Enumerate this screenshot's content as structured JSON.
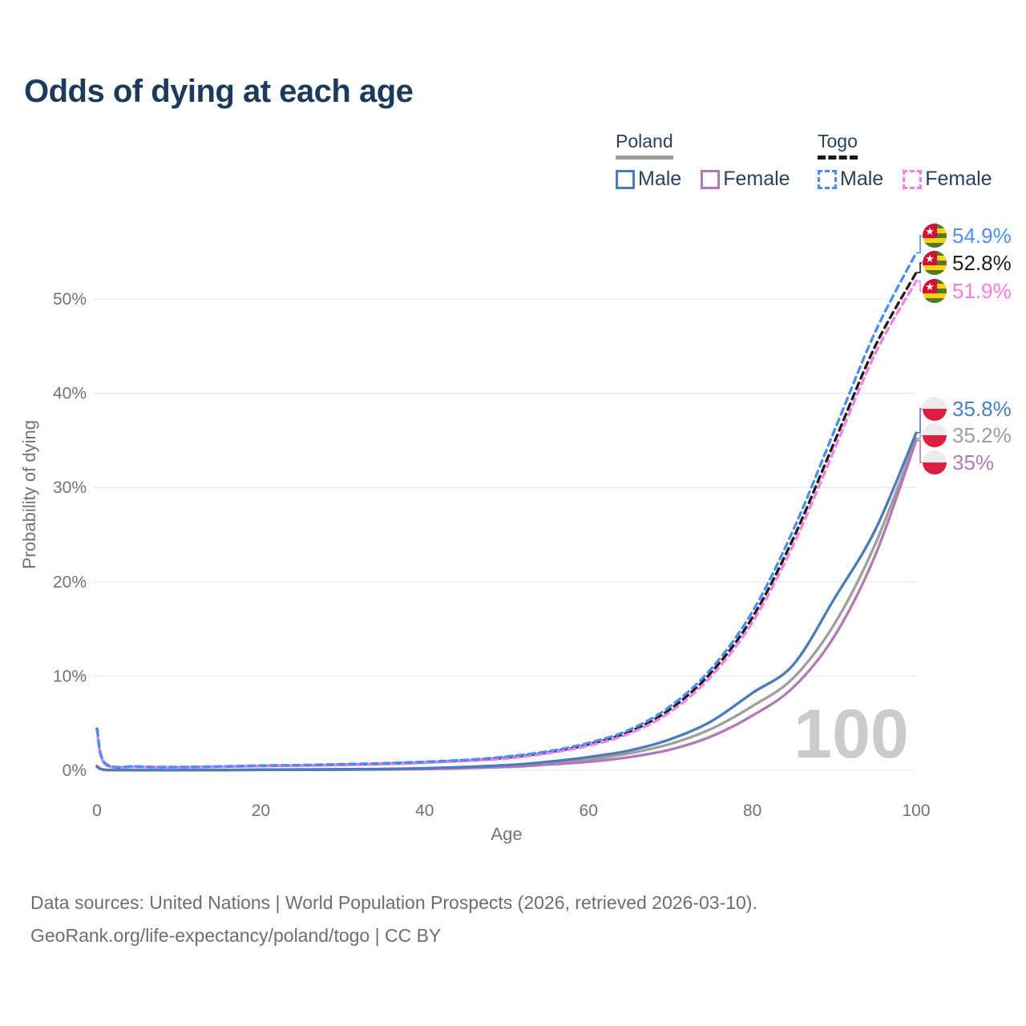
{
  "title": "Odds of dying at each age",
  "legend": {
    "groups": [
      {
        "label": "Poland",
        "underline_style": "solid",
        "underline_color": "#9e9e9e",
        "items": [
          {
            "label": "Male",
            "color": "#4a7bbd",
            "dashed": false
          },
          {
            "label": "Female",
            "color": "#b279b6",
            "dashed": false
          }
        ]
      },
      {
        "label": "Togo",
        "underline_style": "dashed",
        "underline_color": "#1a1a1a",
        "items": [
          {
            "label": "Male",
            "color": "#4a8ef5",
            "dashed": true
          },
          {
            "label": "Female",
            "color": "#fb7de9",
            "dashed": true
          }
        ]
      }
    ]
  },
  "chart_data": {
    "type": "line",
    "title": "Odds of dying at each age",
    "xlabel": "Age",
    "ylabel": "Probability of dying",
    "x_ticks": [
      0,
      20,
      40,
      60,
      80,
      100
    ],
    "y_ticks_percent": [
      0,
      10,
      20,
      30,
      40,
      50
    ],
    "xlim": [
      0,
      100
    ],
    "ylim_percent": [
      0,
      57
    ],
    "grid": "horizontal",
    "gridline_color": "#e9e9e9",
    "tick_color": "#737373",
    "watermark": "100",
    "watermark_color": "#cbcbcb",
    "series": [
      {
        "id": "poland-combined",
        "name": "Poland (both sexes)",
        "color": "#9e9e9e",
        "dashed": false,
        "end_label": {
          "text": "35.2%",
          "color": "#9e9e9e",
          "flag": "poland"
        },
        "points": [
          [
            0,
            0.4
          ],
          [
            1,
            0.045
          ],
          [
            5,
            0.013
          ],
          [
            10,
            0.011
          ],
          [
            15,
            0.025
          ],
          [
            20,
            0.055
          ],
          [
            30,
            0.09
          ],
          [
            40,
            0.18
          ],
          [
            50,
            0.45
          ],
          [
            55,
            0.75
          ],
          [
            60,
            1.15
          ],
          [
            65,
            1.8
          ],
          [
            70,
            2.8
          ],
          [
            75,
            4.4
          ],
          [
            80,
            6.8
          ],
          [
            85,
            9.8
          ],
          [
            90,
            15.5
          ],
          [
            95,
            24.0
          ],
          [
            100,
            35.2
          ]
        ]
      },
      {
        "id": "poland-female",
        "name": "Poland Female",
        "color": "#b279b6",
        "dashed": false,
        "end_label": {
          "text": "35%",
          "color": "#b279b6",
          "flag": "poland"
        },
        "points": [
          [
            0,
            0.38
          ],
          [
            1,
            0.04
          ],
          [
            5,
            0.012
          ],
          [
            10,
            0.01
          ],
          [
            15,
            0.02
          ],
          [
            20,
            0.04
          ],
          [
            30,
            0.06
          ],
          [
            40,
            0.13
          ],
          [
            50,
            0.35
          ],
          [
            55,
            0.6
          ],
          [
            60,
            0.9
          ],
          [
            65,
            1.4
          ],
          [
            70,
            2.2
          ],
          [
            75,
            3.6
          ],
          [
            80,
            5.8
          ],
          [
            85,
            8.8
          ],
          [
            90,
            14.2
          ],
          [
            95,
            22.8
          ],
          [
            100,
            35.0
          ]
        ]
      },
      {
        "id": "poland-male",
        "name": "Poland Male",
        "color": "#4a7bbd",
        "dashed": false,
        "end_label": {
          "text": "35.8%",
          "color": "#4a7ec9",
          "flag": "poland"
        },
        "points": [
          [
            0,
            0.45
          ],
          [
            1,
            0.05
          ],
          [
            5,
            0.015
          ],
          [
            10,
            0.012
          ],
          [
            15,
            0.03
          ],
          [
            20,
            0.07
          ],
          [
            30,
            0.11
          ],
          [
            40,
            0.22
          ],
          [
            50,
            0.55
          ],
          [
            55,
            0.9
          ],
          [
            60,
            1.4
          ],
          [
            65,
            2.1
          ],
          [
            70,
            3.3
          ],
          [
            75,
            5.2
          ],
          [
            80,
            8.2
          ],
          [
            85,
            11.2
          ],
          [
            90,
            18.2
          ],
          [
            95,
            25.5
          ],
          [
            100,
            35.8
          ]
        ]
      },
      {
        "id": "togo-combined",
        "name": "Togo (both sexes)",
        "color": "#1d1d1d",
        "dashed": true,
        "end_label": {
          "text": "52.8%",
          "color": "#1d1d1d",
          "flag": "togo"
        },
        "points": [
          [
            0,
            4.4
          ],
          [
            1,
            0.7
          ],
          [
            5,
            0.38
          ],
          [
            10,
            0.33
          ],
          [
            15,
            0.38
          ],
          [
            20,
            0.47
          ],
          [
            25,
            0.52
          ],
          [
            30,
            0.6
          ],
          [
            35,
            0.7
          ],
          [
            40,
            0.85
          ],
          [
            45,
            1.05
          ],
          [
            50,
            1.35
          ],
          [
            55,
            1.9
          ],
          [
            60,
            2.75
          ],
          [
            65,
            4.1
          ],
          [
            70,
            6.5
          ],
          [
            75,
            10.4
          ],
          [
            80,
            16.2
          ],
          [
            85,
            24.6
          ],
          [
            90,
            34.8
          ],
          [
            95,
            45.0
          ],
          [
            100,
            52.8
          ]
        ]
      },
      {
        "id": "togo-female",
        "name": "Togo Female",
        "color": "#fb7de9",
        "dashed": true,
        "end_label": {
          "text": "51.9%",
          "color": "#fb7ce0",
          "flag": "togo"
        },
        "points": [
          [
            0,
            4.2
          ],
          [
            1,
            0.65
          ],
          [
            5,
            0.36
          ],
          [
            10,
            0.31
          ],
          [
            15,
            0.36
          ],
          [
            20,
            0.44
          ],
          [
            25,
            0.49
          ],
          [
            30,
            0.56
          ],
          [
            35,
            0.65
          ],
          [
            40,
            0.8
          ],
          [
            45,
            1.0
          ],
          [
            50,
            1.25
          ],
          [
            55,
            1.8
          ],
          [
            60,
            2.6
          ],
          [
            65,
            3.9
          ],
          [
            70,
            6.2
          ],
          [
            75,
            10.0
          ],
          [
            80,
            15.7
          ],
          [
            85,
            23.9
          ],
          [
            90,
            34.0
          ],
          [
            95,
            44.2
          ],
          [
            100,
            51.9
          ]
        ]
      },
      {
        "id": "togo-male",
        "name": "Togo Male",
        "color": "#4a8ef5",
        "dashed": true,
        "end_label": {
          "text": "54.9%",
          "color": "#4a90f5",
          "flag": "togo"
        },
        "points": [
          [
            0,
            4.6
          ],
          [
            1,
            0.75
          ],
          [
            5,
            0.4
          ],
          [
            10,
            0.35
          ],
          [
            15,
            0.4
          ],
          [
            20,
            0.5
          ],
          [
            25,
            0.55
          ],
          [
            30,
            0.65
          ],
          [
            35,
            0.75
          ],
          [
            40,
            0.9
          ],
          [
            45,
            1.1
          ],
          [
            50,
            1.45
          ],
          [
            55,
            2.0
          ],
          [
            60,
            2.9
          ],
          [
            65,
            4.3
          ],
          [
            70,
            6.8
          ],
          [
            75,
            10.8
          ],
          [
            80,
            16.8
          ],
          [
            85,
            25.5
          ],
          [
            90,
            36.0
          ],
          [
            95,
            46.5
          ],
          [
            100,
            54.9
          ]
        ]
      }
    ],
    "flag_colors": {
      "poland_white": "#ebebeb",
      "poland_red": "#dc1f3e",
      "togo_green": "#4e7b24",
      "togo_yellow": "#fdd216",
      "togo_red": "#d21034",
      "togo_star": "#ffffff"
    }
  },
  "footer": {
    "line1": "Data sources: United Nations | World Population Prospects (2026, retrieved 2026-03-10).",
    "line2": "GeoRank.org/life-expectancy/poland/togo | CC BY"
  }
}
